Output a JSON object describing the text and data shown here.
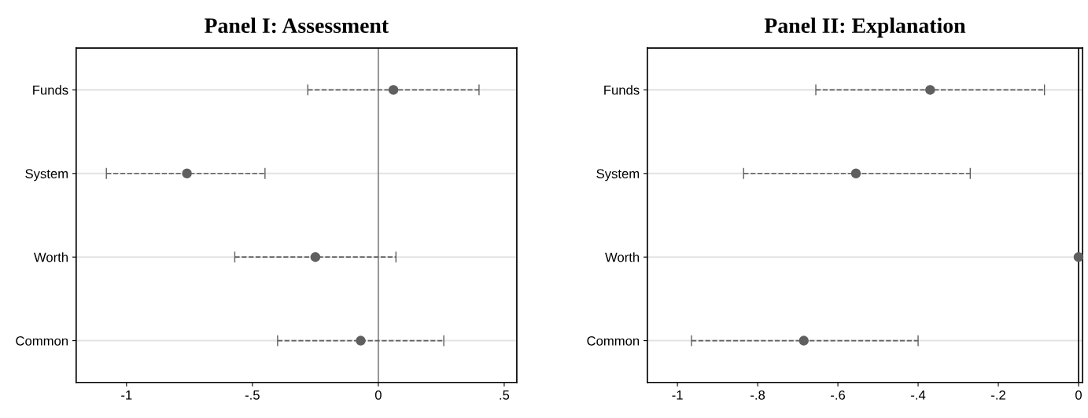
{
  "chart_data": [
    {
      "type": "scatter",
      "title": "Panel I: Assessment",
      "categories": [
        "Funds",
        "System",
        "Worth",
        "Common"
      ],
      "orientation": "horizontal",
      "values": [
        0.06,
        -0.76,
        -0.25,
        -0.07
      ],
      "errors": [
        [
          -0.28,
          0.4
        ],
        [
          -1.08,
          -0.45
        ],
        [
          -0.57,
          0.07
        ],
        [
          -0.4,
          0.26
        ]
      ],
      "color": "#5f5f5f",
      "marker": "circle",
      "line_style": "dashed",
      "xlim": [
        -1.2,
        0.55
      ],
      "xticks": [
        -1,
        {
          "value": -0.5,
          "label": "-.5"
        },
        0,
        {
          "value": 0.5,
          "label": ".5"
        }
      ],
      "ref_lines": [
        {
          "axis": "x",
          "value": 0,
          "color": "#7f7f7f"
        }
      ],
      "grid": "y"
    },
    {
      "type": "scatter",
      "title": "Panel II: Explanation",
      "categories": [
        "Funds",
        "System",
        "Worth",
        "Common"
      ],
      "orientation": "horizontal",
      "values": [
        -0.37,
        -0.555,
        0,
        -0.685
      ],
      "errors": [
        [
          -0.655,
          -0.085
        ],
        [
          -0.835,
          -0.27
        ],
        null,
        [
          -0.965,
          -0.4
        ]
      ],
      "color": "#5f5f5f",
      "marker": "circle",
      "line_style": "dashed",
      "xlim": [
        -1.075,
        0.01
      ],
      "xticks": [
        -1,
        {
          "value": -0.8,
          "label": "-.8"
        },
        {
          "value": -0.6,
          "label": "-.6"
        },
        {
          "value": -0.4,
          "label": "-.4"
        },
        {
          "value": -0.2,
          "label": "-.2"
        },
        0
      ],
      "ref_lines": [
        {
          "axis": "x",
          "value": 0,
          "color": "#000000"
        }
      ],
      "grid": "y"
    }
  ]
}
